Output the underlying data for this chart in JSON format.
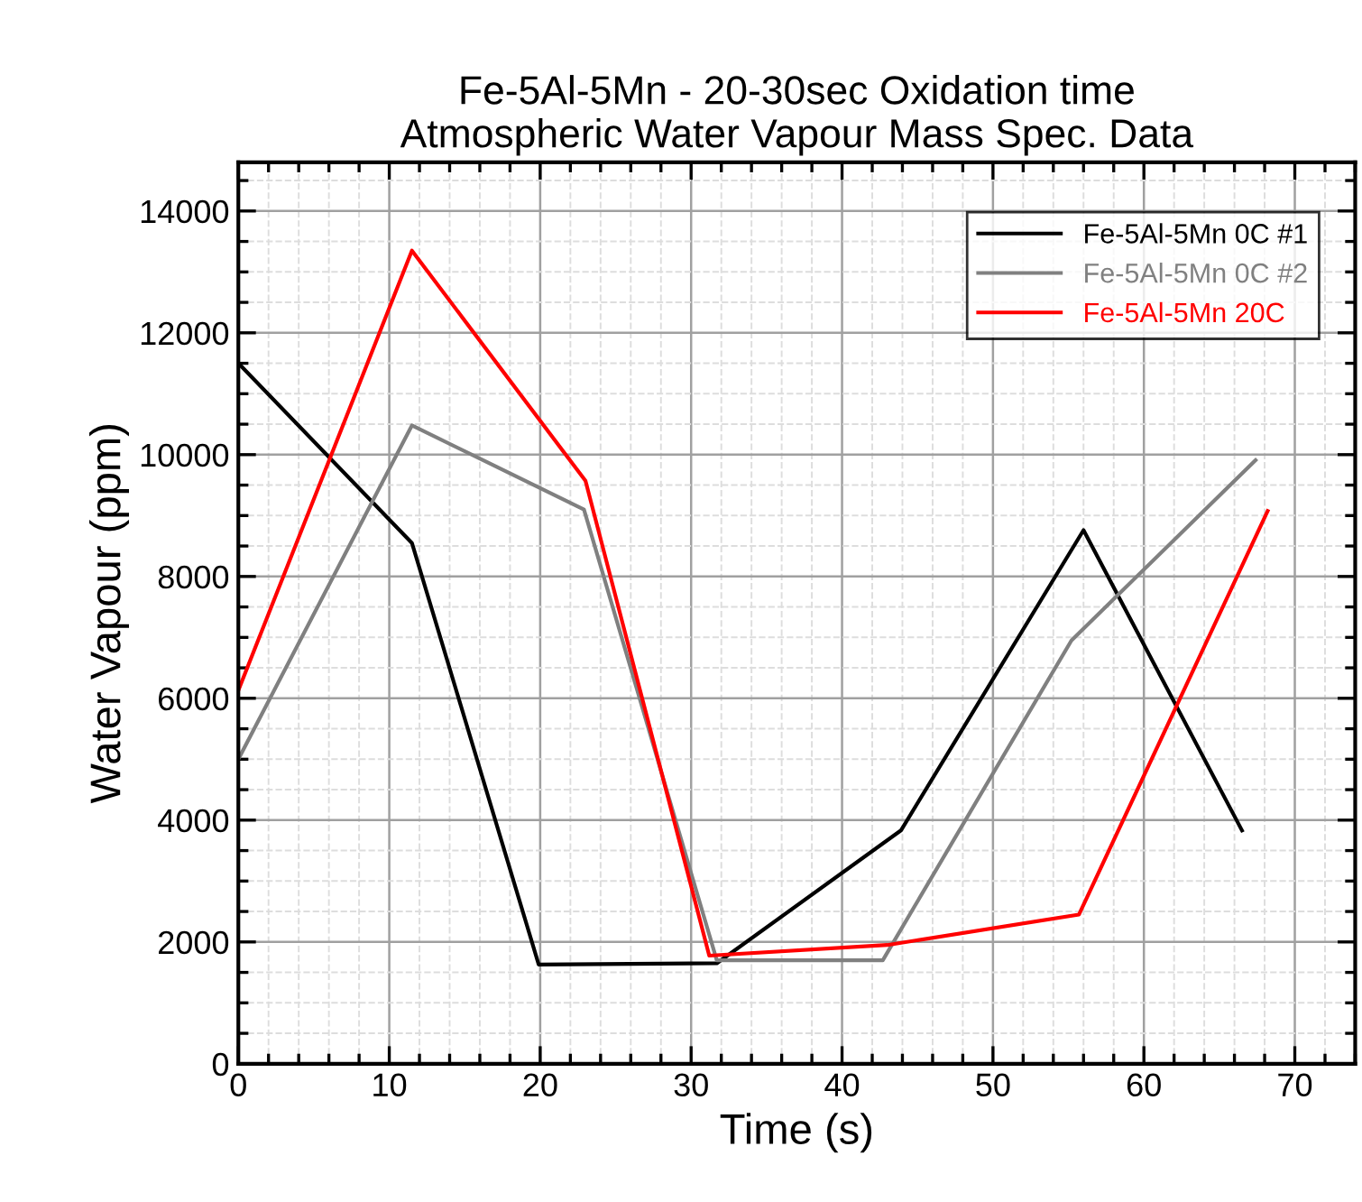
{
  "chart_data": {
    "type": "line",
    "title": "Fe-5Al-5Mn - 20-30sec Oxidation time\nAtmospheric Water Vapour Mass Spec. Data",
    "xlabel": "Time (s)",
    "ylabel": "Water Vapour (ppm)",
    "xlim": [
      0,
      74
    ],
    "ylim": [
      0,
      14800
    ],
    "xticks": [
      0,
      10,
      20,
      30,
      40,
      50,
      60,
      70
    ],
    "yticks": [
      0,
      2000,
      4000,
      6000,
      8000,
      10000,
      12000,
      14000
    ],
    "grid": true,
    "legend": "top right",
    "marker": "none",
    "line_style": "solid",
    "series": [
      {
        "name": "Fe-5Al-5Mn 0C #1",
        "color": "#000000",
        "x": [
          0,
          11.5,
          19.9,
          31.7,
          43.9,
          56.0,
          66.5
        ],
        "values": [
          11500,
          8550,
          1630,
          1650,
          3830,
          8760,
          3830
        ]
      },
      {
        "name": "Fe-5Al-5Mn 0C #2",
        "color": "#808080",
        "x": [
          0,
          11.5,
          22.9,
          31.7,
          42.7,
          55.2,
          67.4
        ],
        "values": [
          5000,
          10480,
          9100,
          1700,
          1700,
          6950,
          9910
        ]
      },
      {
        "name": "Fe-5Al-5Mn 20C",
        "color": "#ff0000",
        "x": [
          0,
          11.5,
          23.0,
          31.2,
          43.0,
          55.7,
          68.2
        ],
        "values": [
          6130,
          13350,
          9570,
          1775,
          1950,
          2450,
          9075
        ]
      }
    ]
  }
}
